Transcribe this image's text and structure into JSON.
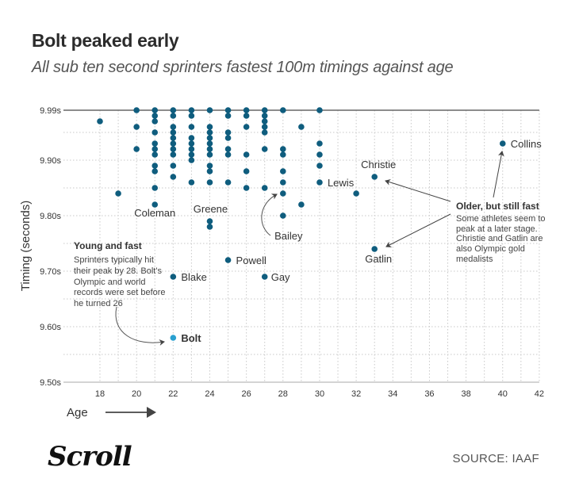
{
  "header": {
    "title": "Bolt peaked early",
    "subtitle": "All sub ten second sprinters fastest 100m timings against age"
  },
  "footer": {
    "logo": "Scroll",
    "source": "SOURCE: IAAF"
  },
  "colors": {
    "point": "#0f5d7e",
    "highlight": "#2aa0d0",
    "axis": "#666666",
    "grid": "#c8c8c8"
  },
  "chart_data": {
    "type": "scatter",
    "title": "Bolt peaked early",
    "subtitle": "All sub ten second sprinters fastest 100m timings against age",
    "xlabel": "Age",
    "ylabel": "Timing (seconds)",
    "xlim": [
      16,
      42
    ],
    "ylim": [
      9.5,
      9.99
    ],
    "x_ticks": [
      18,
      20,
      22,
      24,
      26,
      28,
      30,
      32,
      34,
      36,
      38,
      40,
      42
    ],
    "y_ticks": [
      {
        "value": 9.99,
        "label": "9.99s"
      },
      {
        "value": 9.9,
        "label": "9.90s"
      },
      {
        "value": 9.8,
        "label": "9.80s"
      },
      {
        "value": 9.7,
        "label": "9.70s"
      },
      {
        "value": 9.6,
        "label": "9.60s"
      },
      {
        "value": 9.5,
        "label": "9.50s"
      }
    ],
    "grid": true,
    "points": [
      {
        "age": 18,
        "time": 9.97
      },
      {
        "age": 19,
        "time": 9.84
      },
      {
        "age": 20,
        "time": 9.99
      },
      {
        "age": 20,
        "time": 9.96
      },
      {
        "age": 20,
        "time": 9.92
      },
      {
        "age": 21,
        "time": 9.99
      },
      {
        "age": 21,
        "time": 9.98
      },
      {
        "age": 21,
        "time": 9.97
      },
      {
        "age": 21,
        "time": 9.95
      },
      {
        "age": 21,
        "time": 9.93
      },
      {
        "age": 21,
        "time": 9.92
      },
      {
        "age": 21,
        "time": 9.91
      },
      {
        "age": 21,
        "time": 9.89
      },
      {
        "age": 21,
        "time": 9.88
      },
      {
        "age": 21,
        "time": 9.85
      },
      {
        "age": 21,
        "time": 9.82,
        "label": "Coleman"
      },
      {
        "age": 22,
        "time": 9.99
      },
      {
        "age": 22,
        "time": 9.98
      },
      {
        "age": 22,
        "time": 9.96
      },
      {
        "age": 22,
        "time": 9.95
      },
      {
        "age": 22,
        "time": 9.94
      },
      {
        "age": 22,
        "time": 9.93
      },
      {
        "age": 22,
        "time": 9.92
      },
      {
        "age": 22,
        "time": 9.91
      },
      {
        "age": 22,
        "time": 9.89
      },
      {
        "age": 22,
        "time": 9.87
      },
      {
        "age": 22,
        "time": 9.69,
        "label": "Blake"
      },
      {
        "age": 22,
        "time": 9.58,
        "label": "Bolt",
        "highlight": true
      },
      {
        "age": 23,
        "time": 9.99
      },
      {
        "age": 23,
        "time": 9.98
      },
      {
        "age": 23,
        "time": 9.96
      },
      {
        "age": 23,
        "time": 9.94
      },
      {
        "age": 23,
        "time": 9.93
      },
      {
        "age": 23,
        "time": 9.92
      },
      {
        "age": 23,
        "time": 9.91
      },
      {
        "age": 23,
        "time": 9.9
      },
      {
        "age": 23,
        "time": 9.86
      },
      {
        "age": 24,
        "time": 9.99
      },
      {
        "age": 24,
        "time": 9.96
      },
      {
        "age": 24,
        "time": 9.95
      },
      {
        "age": 24,
        "time": 9.94
      },
      {
        "age": 24,
        "time": 9.93
      },
      {
        "age": 24,
        "time": 9.92
      },
      {
        "age": 24,
        "time": 9.91
      },
      {
        "age": 24,
        "time": 9.89
      },
      {
        "age": 24,
        "time": 9.88
      },
      {
        "age": 24,
        "time": 9.86
      },
      {
        "age": 24,
        "time": 9.79,
        "label": "Greene"
      },
      {
        "age": 24,
        "time": 9.78
      },
      {
        "age": 25,
        "time": 9.99
      },
      {
        "age": 25,
        "time": 9.98
      },
      {
        "age": 25,
        "time": 9.95
      },
      {
        "age": 25,
        "time": 9.94
      },
      {
        "age": 25,
        "time": 9.92
      },
      {
        "age": 25,
        "time": 9.91
      },
      {
        "age": 25,
        "time": 9.86
      },
      {
        "age": 25,
        "time": 9.72,
        "label": "Powell"
      },
      {
        "age": 26,
        "time": 9.99
      },
      {
        "age": 26,
        "time": 9.98
      },
      {
        "age": 26,
        "time": 9.96
      },
      {
        "age": 26,
        "time": 9.91
      },
      {
        "age": 26,
        "time": 9.88
      },
      {
        "age": 26,
        "time": 9.85
      },
      {
        "age": 27,
        "time": 9.99
      },
      {
        "age": 27,
        "time": 9.98
      },
      {
        "age": 27,
        "time": 9.97
      },
      {
        "age": 27,
        "time": 9.96
      },
      {
        "age": 27,
        "time": 9.95
      },
      {
        "age": 27,
        "time": 9.92
      },
      {
        "age": 27,
        "time": 9.85
      },
      {
        "age": 27,
        "time": 9.69,
        "label": "Gay"
      },
      {
        "age": 28,
        "time": 9.99
      },
      {
        "age": 28,
        "time": 9.92
      },
      {
        "age": 28,
        "time": 9.91
      },
      {
        "age": 28,
        "time": 9.88
      },
      {
        "age": 28,
        "time": 9.86
      },
      {
        "age": 28,
        "time": 9.84,
        "label": "Bailey"
      },
      {
        "age": 28,
        "time": 9.8
      },
      {
        "age": 29,
        "time": 9.96
      },
      {
        "age": 29,
        "time": 9.82
      },
      {
        "age": 30,
        "time": 9.99
      },
      {
        "age": 30,
        "time": 9.93
      },
      {
        "age": 30,
        "time": 9.91
      },
      {
        "age": 30,
        "time": 9.89
      },
      {
        "age": 30,
        "time": 9.86,
        "label": "Lewis"
      },
      {
        "age": 32,
        "time": 9.84
      },
      {
        "age": 33,
        "time": 9.87,
        "label": "Christie"
      },
      {
        "age": 33,
        "time": 9.74,
        "label": "Gatlin"
      },
      {
        "age": 40,
        "time": 9.93,
        "label": "Collins"
      }
    ],
    "annotations": [
      {
        "title": "Young and fast",
        "lines": [
          "Sprinters typically hit",
          "their peak by 28. Bolt's",
          "Olympic and world",
          "records were set before",
          "he turned 26"
        ],
        "points_to": [
          "Bolt"
        ]
      },
      {
        "title": "Older, but still fast",
        "lines": [
          "Some athletes seem to",
          "peak at a later stage.",
          "Christie and Gatlin are",
          "also Olympic gold",
          "medalists"
        ],
        "points_to": [
          "Christie",
          "Gatlin",
          "Collins"
        ]
      }
    ]
  }
}
